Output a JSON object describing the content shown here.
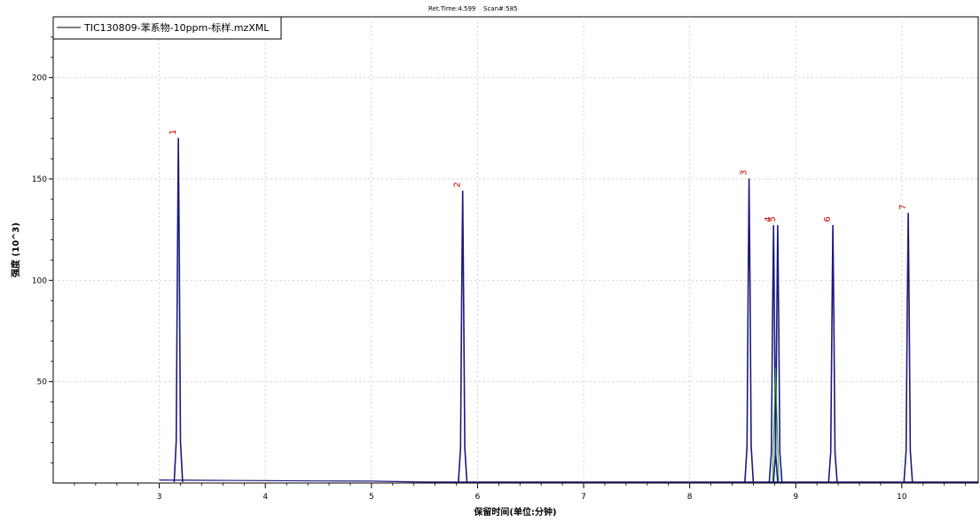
{
  "header": {
    "ret_time": "Ret.Time:4.599",
    "scan": "Scan#:585"
  },
  "legend": {
    "label": "TIC130809-苯系物-10ppm-标样.mzXML"
  },
  "colors": {
    "trace": "#1a1a80",
    "peak_label": "#d00000",
    "inner_trace": "#2ca02c",
    "grid": "#c8c8c8"
  },
  "chart_data": {
    "type": "line",
    "xlabel": "保留时间(单位:分钟)",
    "ylabel": "强度 (10^3)",
    "xlim": [
      2.0,
      10.72
    ],
    "ylim": [
      0,
      230
    ],
    "x_ticks": [
      3,
      4,
      5,
      6,
      7,
      8,
      9,
      10
    ],
    "y_ticks": [
      50,
      100,
      150,
      200
    ],
    "grid": true,
    "legend_position": "top-left",
    "baseline": [
      {
        "x": 3.0,
        "y": 1.5
      },
      {
        "x": 3.5,
        "y": 1.3
      },
      {
        "x": 4.0,
        "y": 1.2
      },
      {
        "x": 4.5,
        "y": 1.0
      },
      {
        "x": 5.0,
        "y": 0.9
      },
      {
        "x": 5.5,
        "y": 0.5
      },
      {
        "x": 10.72,
        "y": 0.5
      }
    ],
    "peaks": [
      {
        "label": "1",
        "x": 3.18,
        "y": 170
      },
      {
        "label": "2",
        "x": 5.86,
        "y": 144
      },
      {
        "label": "3",
        "x": 8.56,
        "y": 150
      },
      {
        "label": "4",
        "x": 8.79,
        "y": 127
      },
      {
        "label": "5",
        "x": 8.83,
        "y": 127
      },
      {
        "label": "6",
        "x": 9.35,
        "y": 127
      },
      {
        "label": "7",
        "x": 10.06,
        "y": 133
      }
    ]
  }
}
